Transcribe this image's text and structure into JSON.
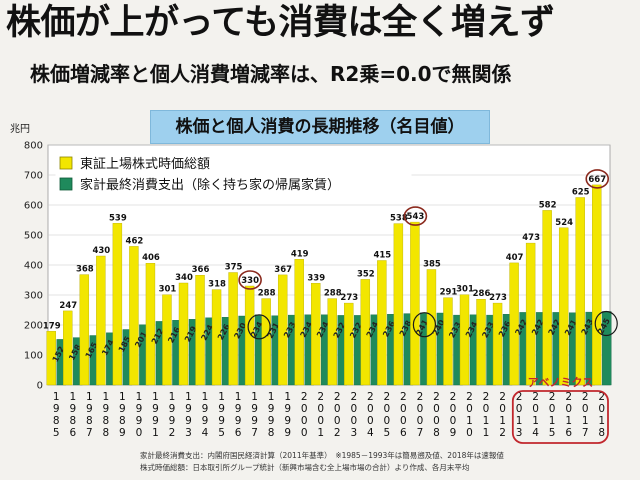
{
  "headline": "株価が上がっても消費は全く増えず",
  "subheadline": "株価増減率と個人消費増減率は、R2乗=0.0で無関係",
  "chart_title": "株価と個人消費の長期推移（名目値）",
  "y_unit": "兆円",
  "highlight_label": "アベノミクス",
  "footnotes": [
    "家計最終消費支出：内閣府国民経済計算（2011年基準）　※1985－1993年は簡易遡及値、2018年は速報値",
    "株式時価総額：日本取引所グループ統計（新興市場含む全上場市場の合計）より作成、各月末平均"
  ],
  "colors": {
    "stock": "#f2e600",
    "consumption": "#1f8a5c",
    "circle": "#8b2a1e",
    "highlight": "#c1272d",
    "title_bg": "#9ed0ee"
  },
  "chart_data": {
    "type": "bar",
    "title": "株価と個人消費の長期推移（名目値）",
    "ylabel": "兆円",
    "ylim": [
      0,
      800
    ],
    "yticks": [
      0,
      100,
      200,
      300,
      400,
      500,
      600,
      700,
      800
    ],
    "grid": true,
    "legend_position": "top-left",
    "categories": [
      "1985",
      "1986",
      "1987",
      "1988",
      "1989",
      "1990",
      "1991",
      "1992",
      "1993",
      "1994",
      "1995",
      "1996",
      "1997",
      "1998",
      "1999",
      "2000",
      "2001",
      "2002",
      "2003",
      "2004",
      "2005",
      "2006",
      "2007",
      "2008",
      "2009",
      "2010",
      "2011",
      "2012",
      "2013",
      "2014",
      "2015",
      "2016",
      "2017",
      "2018"
    ],
    "category_labels_vertical": [
      [
        "1",
        "9",
        "8",
        "5"
      ],
      [
        "1",
        "9",
        "8",
        "6"
      ],
      [
        "1",
        "9",
        "8",
        "7"
      ],
      [
        "1",
        "9",
        "8",
        "8"
      ],
      [
        "1",
        "9",
        "8",
        "9"
      ],
      [
        "1",
        "9",
        "9",
        "0"
      ],
      [
        "1",
        "9",
        "9",
        "1"
      ],
      [
        "1",
        "9",
        "9",
        "2"
      ],
      [
        "1",
        "9",
        "9",
        "3"
      ],
      [
        "1",
        "9",
        "9",
        "4"
      ],
      [
        "1",
        "9",
        "9",
        "5"
      ],
      [
        "1",
        "9",
        "9",
        "6"
      ],
      [
        "1",
        "9",
        "9",
        "7"
      ],
      [
        "1",
        "9",
        "9",
        "8"
      ],
      [
        "1",
        "9",
        "9",
        "9"
      ],
      [
        "2",
        "0",
        "0",
        "0"
      ],
      [
        "2",
        "0",
        "0",
        "1"
      ],
      [
        "2",
        "0",
        "0",
        "2"
      ],
      [
        "2",
        "0",
        "0",
        "3"
      ],
      [
        "2",
        "0",
        "0",
        "4"
      ],
      [
        "2",
        "0",
        "0",
        "5"
      ],
      [
        "2",
        "0",
        "0",
        "6"
      ],
      [
        "2",
        "0",
        "0",
        "7"
      ],
      [
        "2",
        "0",
        "0",
        "8"
      ],
      [
        "2",
        "0",
        "0",
        "9"
      ],
      [
        "2",
        "0",
        "1",
        "0"
      ],
      [
        "2",
        "0",
        "1",
        "1"
      ],
      [
        "2",
        "0",
        "1",
        "2"
      ],
      [
        "2",
        "0",
        "1",
        "3"
      ],
      [
        "2",
        "0",
        "1",
        "4"
      ],
      [
        "2",
        "0",
        "1",
        "5"
      ],
      [
        "2",
        "0",
        "1",
        "6"
      ],
      [
        "2",
        "0",
        "1",
        "7"
      ],
      [
        "2",
        "0",
        "1",
        "8"
      ]
    ],
    "series": [
      {
        "name": "東証上場株式時価総額",
        "color": "#f2e600",
        "values": [
          179,
          247,
          368,
          430,
          539,
          462,
          406,
          301,
          340,
          366,
          318,
          375,
          330,
          288,
          367,
          419,
          339,
          288,
          273,
          352,
          415,
          538,
          543,
          385,
          291,
          301,
          286,
          273,
          407,
          473,
          582,
          524,
          625,
          667
        ],
        "labels": [
          "179",
          "247",
          "368",
          "430",
          "539",
          "462",
          "406",
          "301",
          "340",
          "366",
          "318",
          "375",
          "330",
          "288",
          "367",
          "419",
          "339",
          "288",
          "273",
          "352",
          "415",
          "538",
          "543",
          "385",
          "291",
          "301",
          "286",
          "273",
          "407",
          "473",
          "582",
          "524",
          "625",
          "667"
        ]
      },
      {
        "name": "家計最終消費支出（除く持ち家の帰属家賃）",
        "color": "#1f8a5c",
        "values": [
          152,
          158,
          165,
          174,
          185,
          201,
          212,
          216,
          219,
          224,
          226,
          230,
          234,
          231,
          233,
          234,
          234,
          232,
          232,
          234,
          236,
          238,
          241,
          240,
          233,
          234,
          233,
          236,
          242,
          242,
          242,
          241,
          243,
          245
        ],
        "labels": [
          "152",
          "158",
          "165",
          "174",
          "185",
          "201",
          "212",
          "216",
          "219",
          "224",
          "226",
          "230",
          "234",
          "231",
          "233",
          "234",
          "234",
          "232",
          "232",
          "234",
          "236",
          "238",
          "241",
          "240",
          "233",
          "234",
          "233",
          "236",
          "242",
          "242",
          "242",
          "241",
          "243",
          "245"
        ]
      }
    ],
    "circled_categories": [
      "1997",
      "2007",
      "2018"
    ],
    "highlight_range": [
      "2013",
      "2018"
    ]
  }
}
